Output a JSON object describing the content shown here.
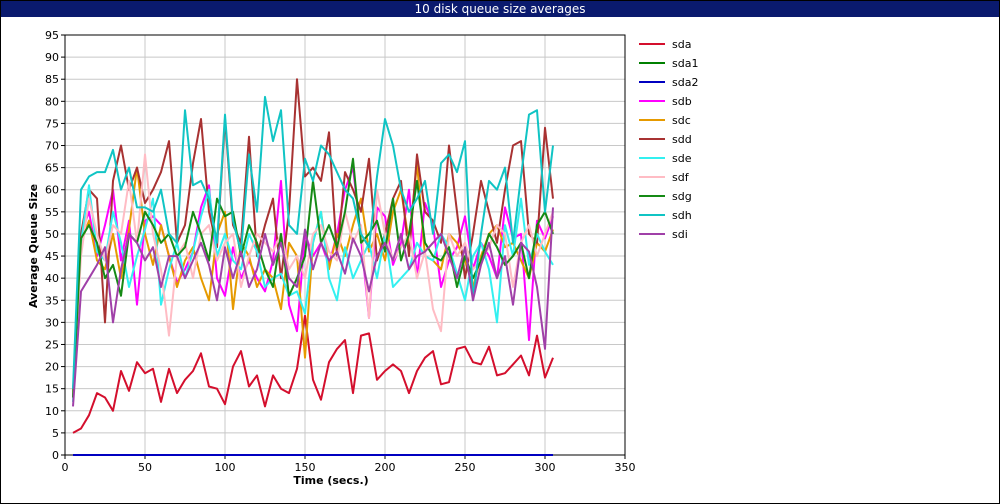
{
  "chart_data": {
    "type": "line",
    "title": "10 disk queue size averages",
    "x_label": "Time (secs.)",
    "y_label": "Average Queue Size",
    "xlim": [
      0,
      350
    ],
    "xticks": [
      0,
      50,
      100,
      150,
      200,
      250,
      300,
      350
    ],
    "ylim": [
      0,
      95
    ],
    "yticks": [
      0,
      5,
      10,
      15,
      20,
      25,
      30,
      35,
      40,
      45,
      50,
      55,
      60,
      65,
      70,
      75,
      80,
      85,
      90,
      95
    ],
    "grid": true,
    "legend": "right",
    "x": [
      5,
      10,
      15,
      20,
      25,
      30,
      35,
      40,
      45,
      50,
      55,
      60,
      65,
      70,
      75,
      80,
      85,
      90,
      95,
      100,
      105,
      110,
      115,
      120,
      125,
      130,
      135,
      140,
      145,
      150,
      155,
      160,
      165,
      170,
      175,
      180,
      185,
      190,
      195,
      200,
      205,
      210,
      215,
      220,
      225,
      230,
      235,
      240,
      245,
      250,
      255,
      260,
      265,
      270,
      275,
      280,
      285,
      290,
      295,
      300,
      305
    ],
    "series": [
      {
        "name": "sda",
        "color": "#d40f2d",
        "values": [
          5,
          6,
          9,
          14,
          13,
          10,
          19,
          14.5,
          21,
          18.5,
          19.5,
          12,
          19.5,
          14,
          17,
          19,
          23,
          15.5,
          15,
          11.5,
          20,
          23.5,
          15.5,
          18,
          11,
          18,
          15,
          14,
          19.5,
          31.5,
          17,
          12.5,
          21,
          24,
          26,
          14,
          27,
          27.5,
          17,
          19,
          20.5,
          19,
          14,
          19,
          22,
          23.5,
          16,
          16.5,
          24,
          24.5,
          21,
          20.5,
          24.5,
          18,
          18.5,
          20.5,
          22.5,
          18,
          27,
          17.5,
          22
        ]
      },
      {
        "name": "sda1",
        "color": "#008000",
        "values": [
          0,
          0,
          0,
          0,
          0,
          0,
          0,
          0,
          0,
          0,
          0,
          0,
          0,
          0,
          0,
          0,
          0,
          0,
          0,
          0,
          0,
          0,
          0,
          0,
          0,
          0,
          0,
          0,
          0,
          0,
          0,
          0,
          0,
          0,
          0,
          0,
          0,
          0,
          0,
          0,
          0,
          0,
          0,
          0,
          0,
          0,
          0,
          0,
          0,
          0,
          0,
          0,
          0,
          0,
          0,
          0,
          0,
          0,
          0,
          0,
          0
        ]
      },
      {
        "name": "sda2",
        "color": "#0000c0",
        "values": [
          0,
          0,
          0,
          0,
          0,
          0,
          0,
          0,
          0,
          0,
          0,
          0,
          0,
          0,
          0,
          0,
          0,
          0,
          0,
          0,
          0,
          0,
          0,
          0,
          0,
          0,
          0,
          0,
          0,
          0,
          0,
          0,
          0,
          0,
          0,
          0,
          0,
          0,
          0,
          0,
          0,
          0,
          0,
          0,
          0,
          0,
          0,
          0,
          0,
          0,
          0,
          0,
          0,
          0,
          0,
          0,
          0,
          0,
          0,
          0,
          0
        ]
      },
      {
        "name": "sdb",
        "color": "#ff00ff",
        "values": [
          13,
          50,
          55,
          45,
          52,
          60,
          44,
          53,
          34,
          53,
          54,
          52,
          45,
          39,
          42,
          46,
          56,
          61,
          40,
          36,
          47,
          40,
          44,
          40,
          37,
          44,
          62,
          34,
          28,
          50,
          45,
          48,
          43,
          50,
          60,
          65,
          49,
          31,
          56,
          54,
          43,
          48,
          60,
          40,
          57,
          52,
          38,
          44,
          47,
          54,
          42,
          48,
          45,
          40,
          56,
          49,
          50,
          26,
          53,
          49,
          54
        ]
      },
      {
        "name": "sdc",
        "color": "#e69a00",
        "values": [
          12,
          48,
          53,
          44,
          42,
          50,
          40,
          51,
          65,
          50,
          43,
          52,
          45,
          38,
          44,
          47,
          40,
          35,
          50,
          55,
          33,
          48,
          45,
          38,
          42,
          40,
          33,
          48,
          45,
          22,
          48,
          55,
          42,
          50,
          45,
          52,
          58,
          46,
          50,
          44,
          55,
          60,
          48,
          66,
          45,
          44,
          42,
          50,
          48,
          44,
          38,
          45,
          50,
          52,
          47,
          48,
          44,
          40,
          48,
          46,
          51
        ]
      },
      {
        "name": "sdd",
        "color": "#a83232",
        "values": [
          14,
          50,
          60,
          58,
          30,
          62,
          70,
          60,
          65,
          57,
          60,
          64,
          71,
          48,
          52,
          66,
          76,
          55,
          47,
          76,
          52,
          48,
          72,
          45,
          52,
          58,
          40,
          55,
          85,
          63,
          65,
          62,
          73,
          45,
          64,
          60,
          55,
          67,
          44,
          50,
          58,
          62,
          45,
          68,
          55,
          53,
          48,
          70,
          55,
          40,
          50,
          62,
          55,
          48,
          60,
          70,
          71,
          50,
          48,
          74,
          58
        ]
      },
      {
        "name": "sde",
        "color": "#33f0f0",
        "values": [
          12,
          48,
          61,
          46,
          44,
          55,
          48,
          38,
          45,
          51,
          58,
          34,
          42,
          48,
          40,
          46,
          54,
          60,
          45,
          50,
          44,
          42,
          50,
          46,
          38,
          40,
          41,
          36,
          37,
          32,
          48,
          55,
          40,
          35,
          47,
          40,
          44,
          48,
          40,
          50,
          38,
          40,
          42,
          48,
          45,
          44,
          50,
          47,
          41,
          35,
          45,
          48,
          42,
          30,
          52,
          45,
          58,
          43,
          50,
          46,
          43
        ]
      },
      {
        "name": "sdf",
        "color": "#ffbcc4",
        "values": [
          14,
          45,
          58,
          50,
          44,
          52,
          50,
          62,
          48,
          68,
          50,
          42,
          27,
          45,
          48,
          40,
          50,
          52,
          44,
          48,
          50,
          38,
          45,
          50,
          48,
          46,
          50,
          42,
          45,
          40,
          50,
          52,
          46,
          44,
          55,
          48,
          52,
          31,
          60,
          50,
          44,
          47,
          50,
          40,
          46,
          33,
          28,
          50,
          45,
          48,
          42,
          44,
          47,
          52,
          50,
          38,
          48,
          52,
          45,
          50,
          55
        ]
      },
      {
        "name": "sdg",
        "color": "#158a15",
        "values": [
          13,
          49,
          52,
          48,
          40,
          43,
          36,
          50,
          48,
          55,
          52,
          48,
          50,
          45,
          47,
          55,
          50,
          44,
          58,
          54,
          55,
          45,
          52,
          48,
          42,
          38,
          50,
          36,
          40,
          45,
          62,
          48,
          52,
          47,
          55,
          67,
          48,
          50,
          53,
          46,
          58,
          44,
          50,
          62,
          48,
          45,
          44,
          47,
          38,
          45,
          40,
          44,
          50,
          47,
          43,
          45,
          48,
          40,
          52,
          55,
          50
        ]
      },
      {
        "name": "sdh",
        "color": "#10c4c4",
        "values": [
          15,
          60,
          63,
          64,
          64,
          69,
          60,
          65,
          56,
          56,
          55,
          60,
          50,
          48,
          78,
          61,
          62,
          58,
          48,
          77,
          53,
          46,
          68,
          55,
          81,
          71,
          78,
          52,
          50,
          67,
          62,
          70,
          68,
          64,
          60,
          58,
          50,
          47,
          63,
          76,
          70,
          60,
          55,
          58,
          62,
          50,
          66,
          68,
          64,
          71,
          35,
          50,
          62,
          60,
          65,
          48,
          63,
          77,
          78,
          55,
          70
        ]
      },
      {
        "name": "sdi",
        "color": "#a040a8",
        "values": [
          11,
          37,
          40,
          43,
          47,
          30,
          42,
          50,
          48,
          44,
          47,
          38,
          45,
          45,
          40,
          44,
          48,
          43,
          35,
          47,
          40,
          46,
          38,
          42,
          50,
          43,
          48,
          40,
          38,
          51,
          42,
          48,
          44,
          46,
          41,
          49,
          45,
          37,
          45,
          48,
          44,
          50,
          42,
          45,
          46,
          48,
          50,
          45,
          40,
          47,
          35,
          43,
          48,
          40,
          45,
          34,
          48,
          46,
          38,
          24,
          56
        ]
      }
    ]
  }
}
